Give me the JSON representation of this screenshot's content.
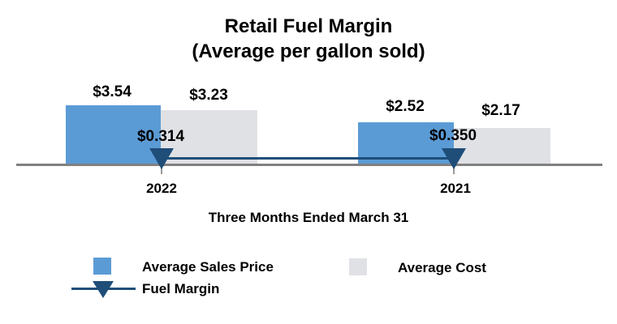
{
  "title": {
    "line1": "Retail Fuel Margin",
    "line2": "(Average per gallon sold)"
  },
  "chart_data": {
    "type": "bar",
    "title": "Retail Fuel Margin (Average per gallon sold)",
    "categories": [
      "2022",
      "2021"
    ],
    "xlabel": "Three Months Ended March 31",
    "series": [
      {
        "name": "Average Sales Price",
        "kind": "bar",
        "color": "#5B9BD5",
        "values": [
          3.54,
          2.52
        ],
        "data_labels": [
          "$3.54",
          "$2.52"
        ]
      },
      {
        "name": "Average Cost",
        "kind": "bar",
        "color": "#DFE1E5",
        "values": [
          3.23,
          2.17
        ],
        "data_labels": [
          "$3.23",
          "$2.17"
        ]
      },
      {
        "name": "Fuel Margin",
        "kind": "line",
        "marker": "triangle-down",
        "color": "#1F4E79",
        "values": [
          0.314,
          0.35
        ],
        "data_labels": [
          "$0.314",
          "$0.350"
        ]
      }
    ],
    "legend_position": "bottom",
    "grid": false,
    "y_axis_visible": false,
    "ylim": [
      0,
      4
    ]
  },
  "colors": {
    "axis_line": "#808080",
    "background": "#FFFFFF",
    "text": "#000000"
  }
}
